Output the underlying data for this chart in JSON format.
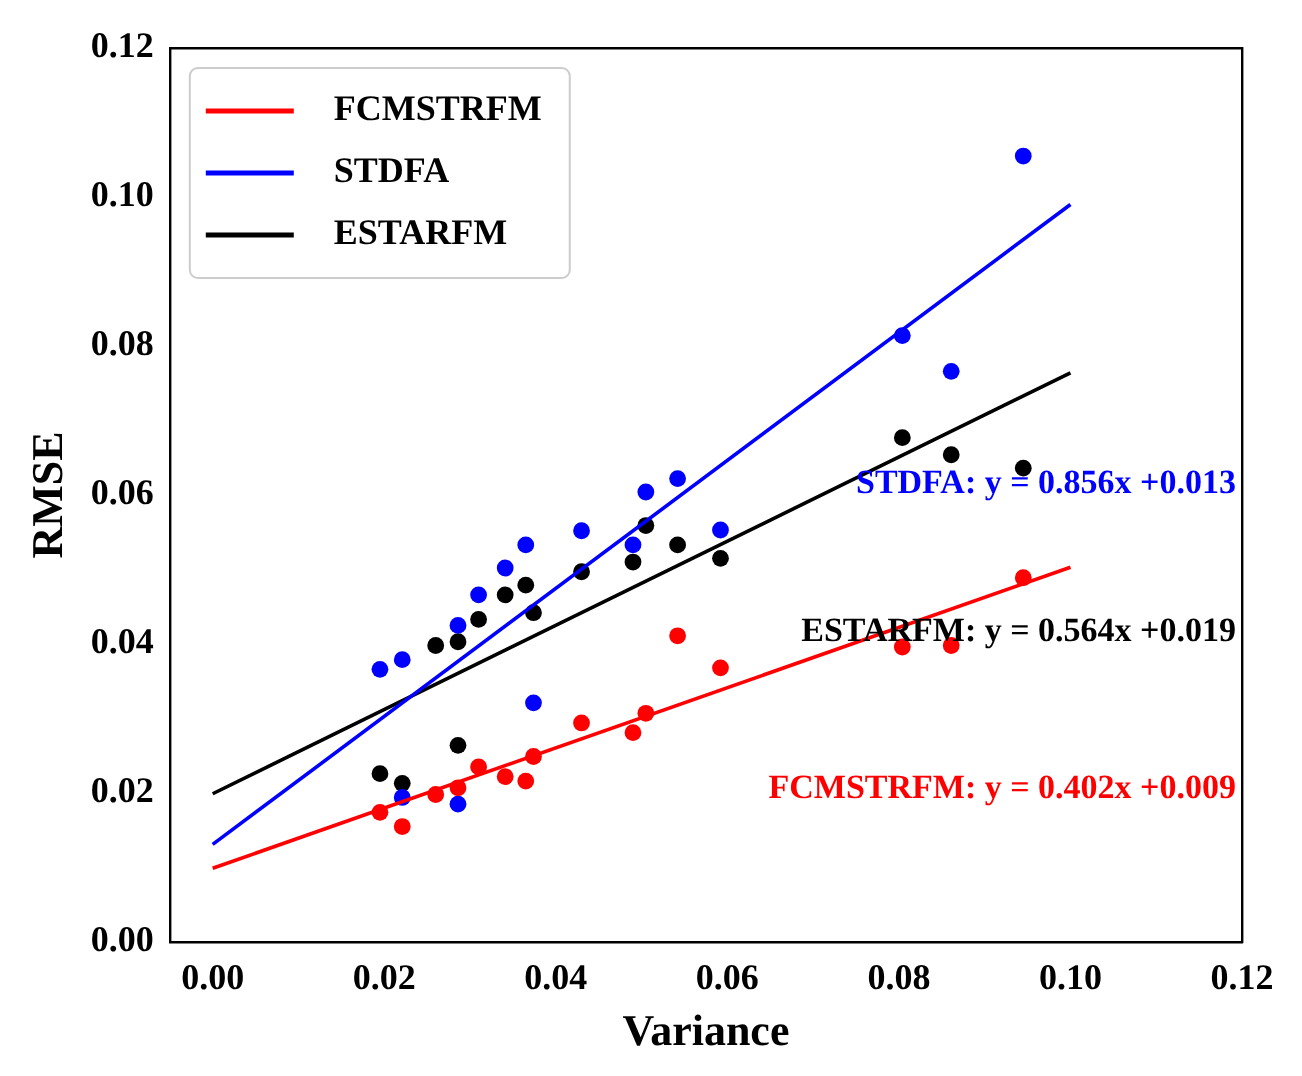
{
  "chart_data": {
    "type": "scatter",
    "xlabel": "Variance",
    "ylabel": "RMSE",
    "xlim": [
      -0.005,
      0.12
    ],
    "ylim": [
      0,
      0.12
    ],
    "xticks": [
      {
        "value": 0,
        "label": "0.00"
      },
      0.02,
      0.04,
      0.06,
      0.08,
      {
        "value": 0.1,
        "label": "0.10"
      },
      0.12
    ],
    "yticks": [
      {
        "value": 0,
        "label": "0.00"
      },
      0.02,
      0.04,
      0.06,
      0.08,
      {
        "value": 0.1,
        "label": "0.10"
      },
      0.12
    ],
    "grid": false,
    "legend": "top left",
    "series": [
      {
        "name": "FCMSTRFM",
        "type": "line",
        "color": "#ff0000",
        "marker": "none",
        "x": [
          0,
          0.1
        ],
        "values": [
          0.0099,
          0.0503
        ]
      },
      {
        "name": "STDFA",
        "type": "line",
        "color": "#0000ff",
        "marker": "none",
        "x": [
          0,
          0.1
        ],
        "values": [
          0.0131,
          0.099
        ]
      },
      {
        "name": "ESTARFM",
        "type": "line",
        "color": "#000000",
        "marker": "none",
        "x": [
          0,
          0.1
        ],
        "values": [
          0.0199,
          0.0764
        ]
      },
      {
        "type": "scatter",
        "color": "#ff0000",
        "marker": "circle",
        "x": [
          0.0195,
          0.0221,
          0.026,
          0.0286,
          0.031,
          0.0341,
          0.0365,
          0.0374,
          0.043,
          0.049,
          0.0505,
          0.0542,
          0.0592,
          0.0804,
          0.0861,
          0.0945
        ],
        "values": [
          0.0174,
          0.0155,
          0.0198,
          0.0207,
          0.0235,
          0.0222,
          0.0216,
          0.0249,
          0.0294,
          0.0281,
          0.0307,
          0.0411,
          0.0368,
          0.0396,
          0.0398,
          0.0489
        ]
      },
      {
        "type": "scatter",
        "color": "#0000ff",
        "marker": "circle",
        "x": [
          0.0195,
          0.0221,
          0.0221,
          0.0286,
          0.0286,
          0.031,
          0.0341,
          0.0365,
          0.0374,
          0.043,
          0.049,
          0.0505,
          0.0542,
          0.0592,
          0.0804,
          0.0861,
          0.0945
        ],
        "values": [
          0.0366,
          0.0379,
          0.0194,
          0.0425,
          0.0185,
          0.0466,
          0.0502,
          0.0533,
          0.0321,
          0.0552,
          0.0533,
          0.0604,
          0.0622,
          0.0553,
          0.0814,
          0.0766,
          0.1055
        ]
      },
      {
        "type": "scatter",
        "color": "#000000",
        "marker": "circle",
        "x": [
          0.0195,
          0.0221,
          0.026,
          0.0286,
          0.0286,
          0.031,
          0.0341,
          0.0365,
          0.0374,
          0.043,
          0.049,
          0.0505,
          0.0542,
          0.0592,
          0.0804,
          0.0861,
          0.0945
        ],
        "values": [
          0.0226,
          0.0213,
          0.0398,
          0.0403,
          0.0264,
          0.0433,
          0.0466,
          0.0479,
          0.0442,
          0.0497,
          0.051,
          0.0559,
          0.0533,
          0.0515,
          0.0677,
          0.0654,
          0.0636
        ]
      }
    ],
    "annotations": [
      "FCMSTRFM: y = 0.402x +0.009",
      "STDFA: y = 0.856x +0.013",
      "ESTARFM: y = 0.564x +0.019"
    ]
  }
}
